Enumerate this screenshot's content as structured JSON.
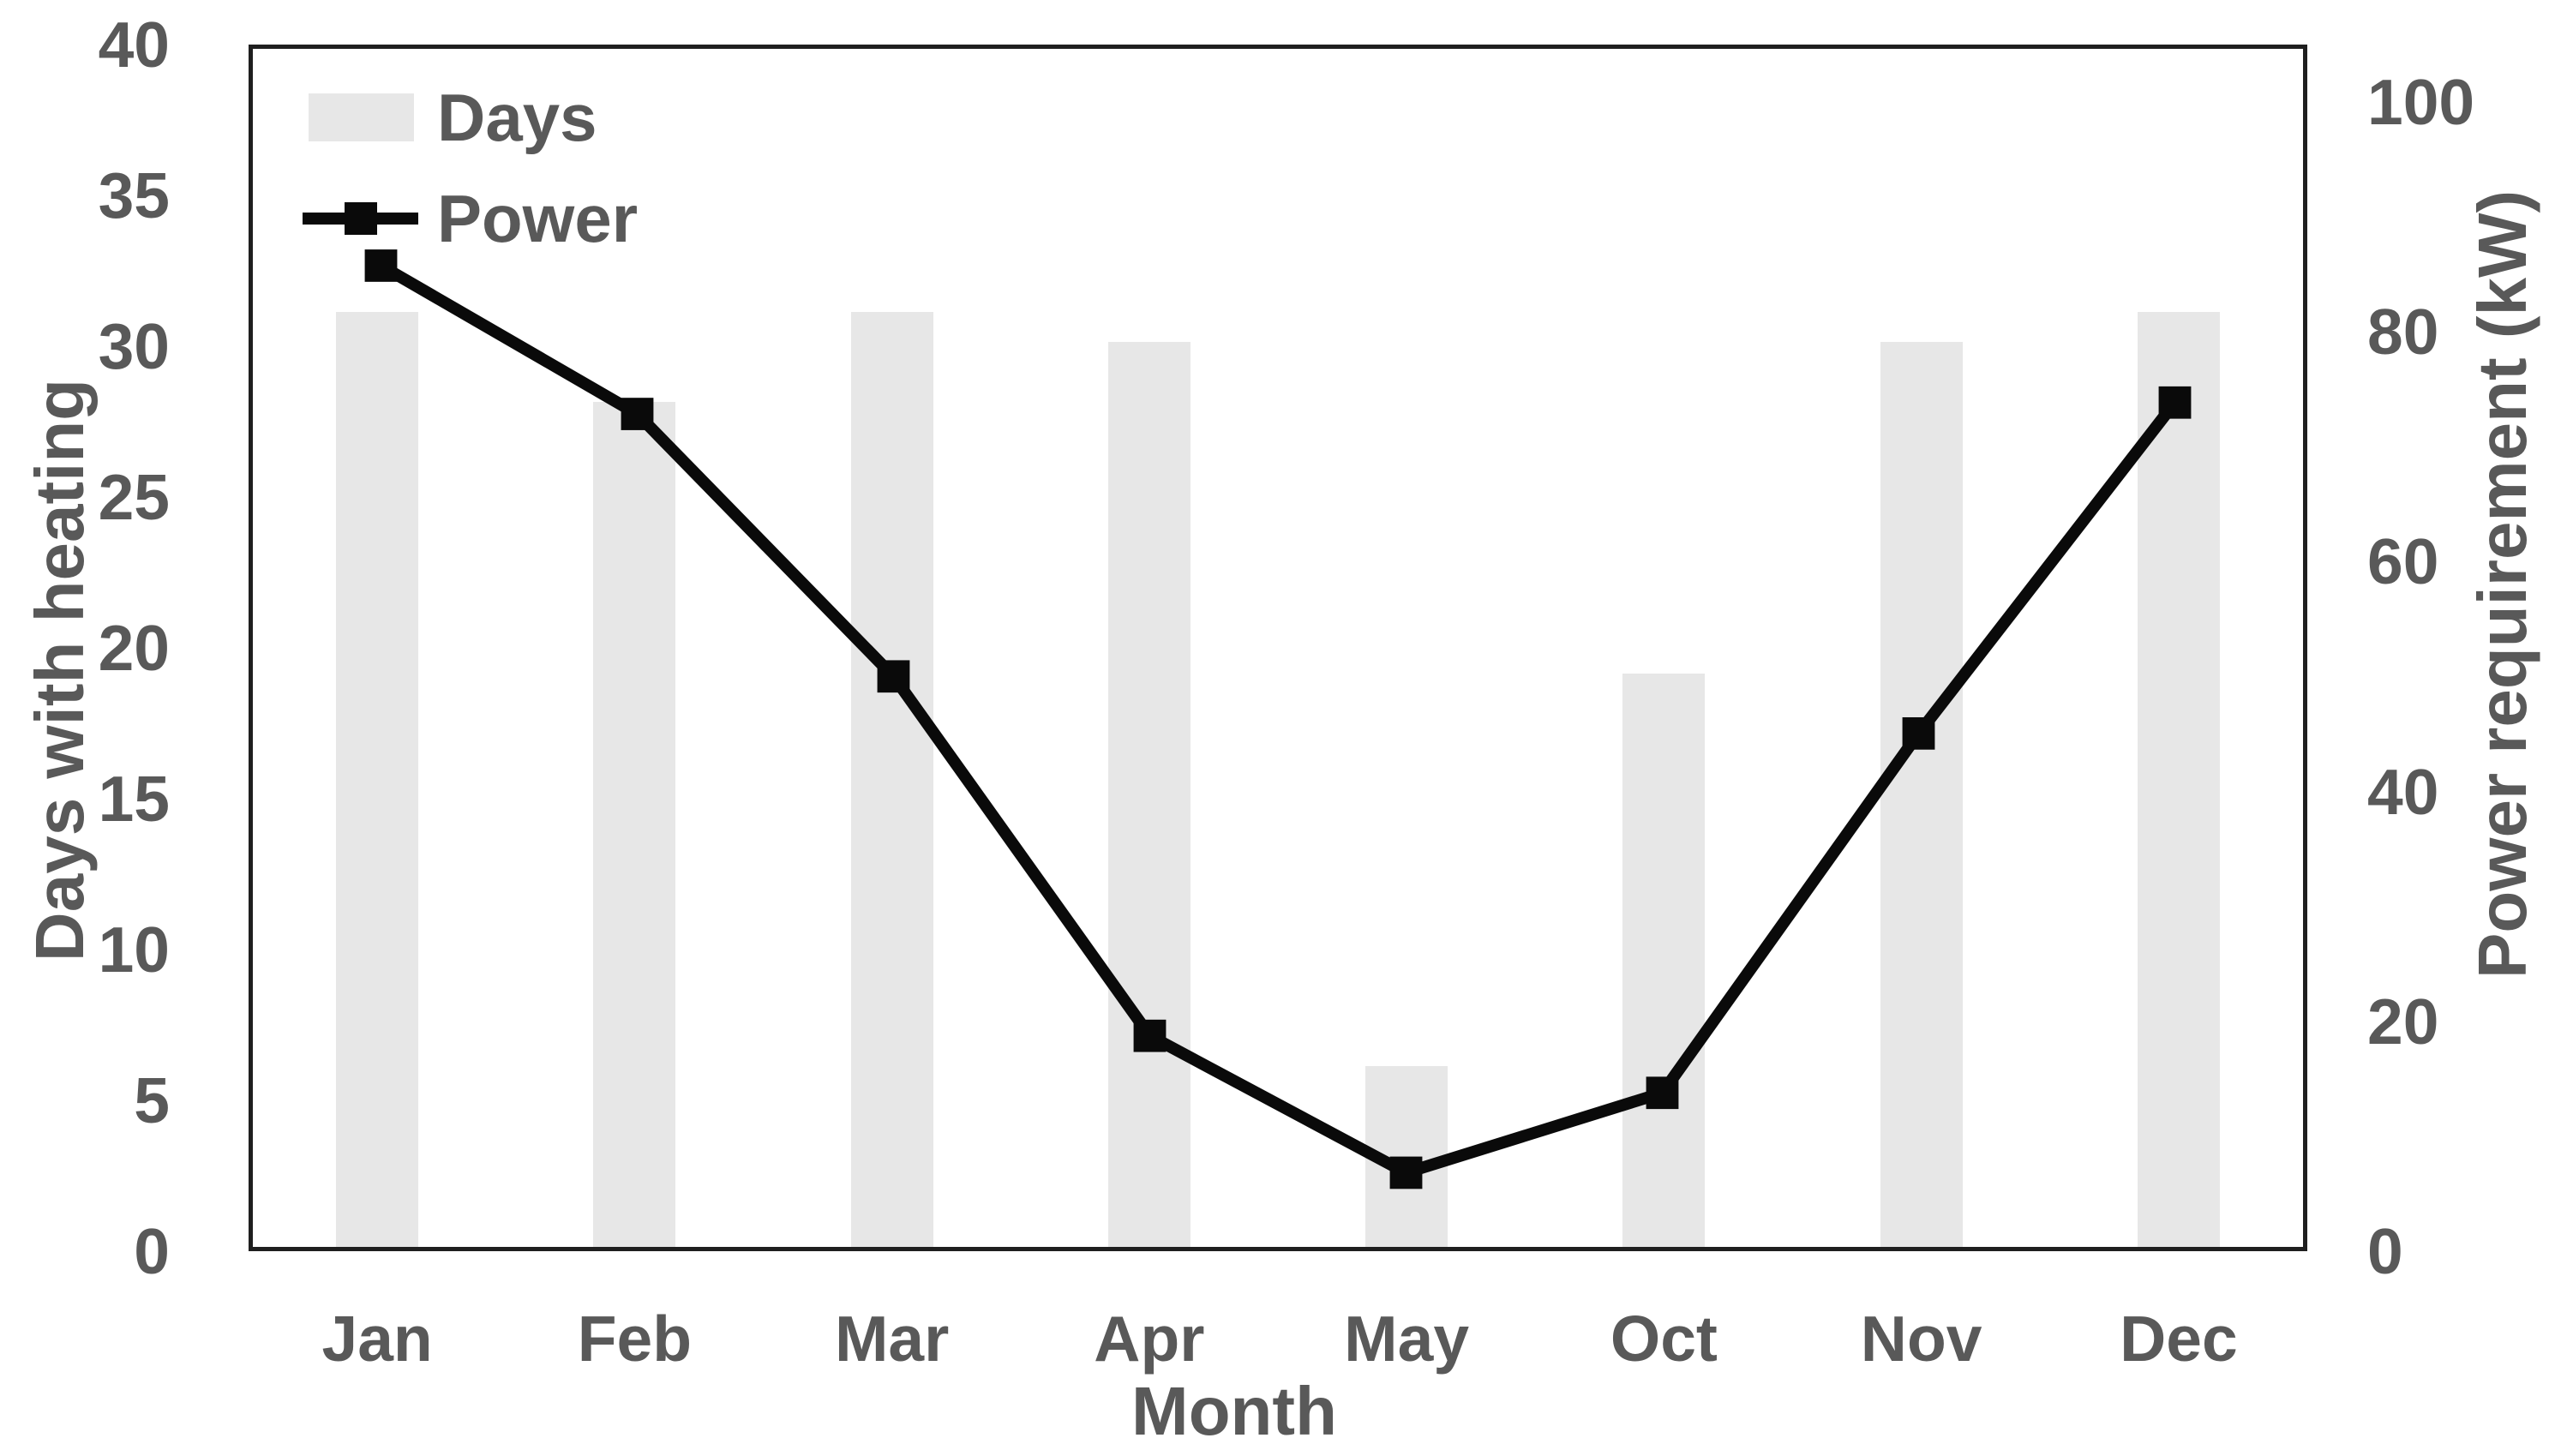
{
  "chart_data": {
    "type": "combo",
    "title": "",
    "categories": [
      "Jan",
      "Feb",
      "Mar",
      "Apr",
      "May",
      "Oct",
      "Nov",
      "Dec"
    ],
    "series": [
      {
        "name": "Days",
        "type": "bar",
        "axis": "left",
        "values": [
          31,
          28,
          31,
          30,
          6,
          19,
          30,
          31
        ],
        "color": "#e7e7e7"
      },
      {
        "name": "Power",
        "type": "line",
        "axis": "right",
        "values": [
          86,
          73,
          50,
          18.5,
          6.5,
          13.5,
          45,
          74
        ],
        "color": "#0a0a0a",
        "marker": "square"
      }
    ],
    "x_axis": {
      "label": "Month"
    },
    "left_axis": {
      "label": "Days with heating",
      "ticks": [
        0,
        5,
        10,
        15,
        20,
        25,
        30,
        35,
        40
      ],
      "range": [
        0,
        40
      ]
    },
    "right_axis": {
      "label": "Power requirement (kW)",
      "ticks": [
        0,
        20,
        40,
        60,
        80,
        100
      ],
      "range": [
        0,
        105
      ]
    },
    "legend": {
      "position": "top-left",
      "entries": [
        "Days",
        "Power"
      ]
    },
    "grid": false,
    "colors": {
      "text": "#595959",
      "axis_line": "#1f1f1f",
      "bar_fill": "#e7e7e7",
      "line": "#0a0a0a",
      "background": "#ffffff"
    }
  }
}
